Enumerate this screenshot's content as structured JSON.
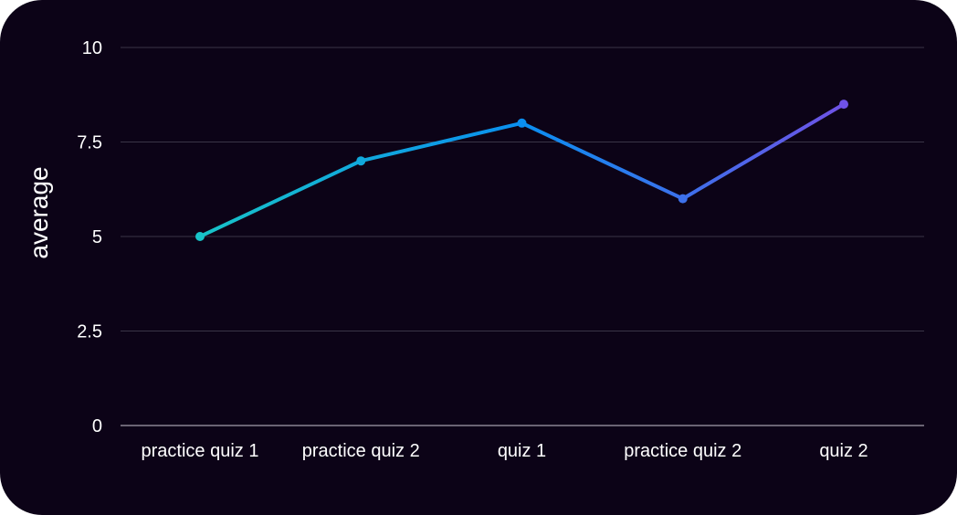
{
  "chart_data": {
    "type": "line",
    "categories": [
      "practice quiz 1",
      "practice quiz 2",
      "quiz 1",
      "practice quiz 2",
      "quiz 2"
    ],
    "series": [
      {
        "values": [
          5,
          7,
          8,
          6,
          8.5
        ]
      }
    ],
    "ylabel": "average",
    "ylim": [
      0,
      10
    ],
    "yticks": [
      0,
      2.5,
      5,
      7.5,
      10
    ],
    "ytick_labels": [
      "0",
      "2.5",
      "5",
      "7.5",
      "10"
    ],
    "grid": true,
    "colors": {
      "background": "#0c0317",
      "gridline": "#3a3447",
      "baseline": "#8a8594",
      "gradient_start": "#18c3c8",
      "gradient_mid": "#0a8ff0",
      "gradient_end": "#6f52e6"
    }
  }
}
